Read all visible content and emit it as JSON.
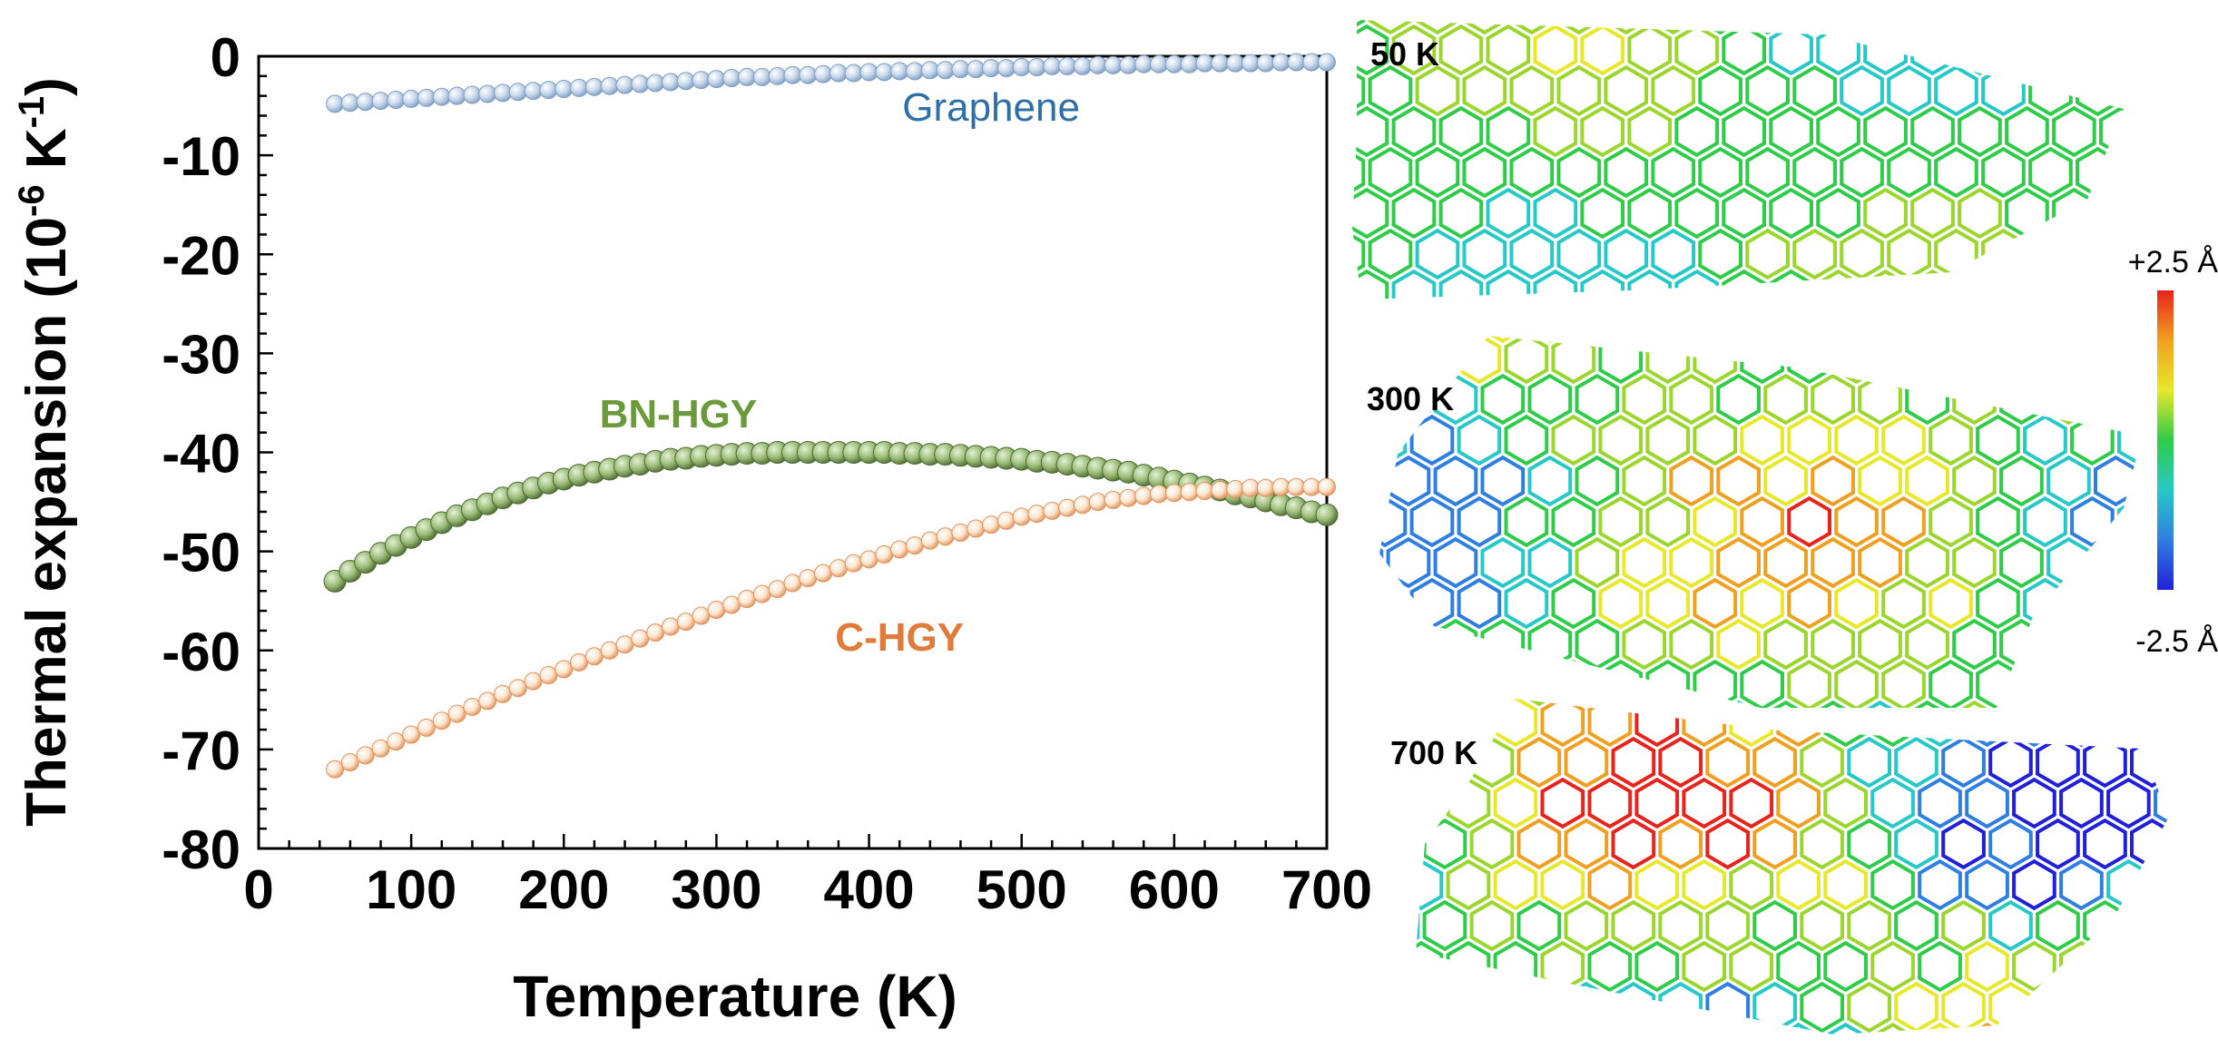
{
  "chart_data": {
    "type": "scatter",
    "title": "",
    "xlabel": "Temperature (K)",
    "ylabel_main": "Thermal expansion (10",
    "ylabel_exp1": "-6",
    "ylabel_unit": " K",
    "ylabel_exp2": "-1",
    "ylabel_close": ")",
    "xlim": [
      0,
      700
    ],
    "ylim": [
      -80,
      0
    ],
    "xticks": [
      0,
      100,
      200,
      300,
      400,
      500,
      600,
      700
    ],
    "xtick_labels": [
      "0",
      "100",
      "200",
      "300",
      "400",
      "500",
      "600",
      "700"
    ],
    "yticks": [
      0,
      -10,
      -20,
      -30,
      -40,
      -50,
      -60,
      -70,
      -80
    ],
    "ytick_labels": [
      "0",
      "-10",
      "-20",
      "-30",
      "-40",
      "-50",
      "-60",
      "-70",
      "-80"
    ],
    "grid": false,
    "x": [
      50,
      60,
      70,
      80,
      90,
      100,
      110,
      120,
      130,
      140,
      150,
      160,
      170,
      180,
      190,
      200,
      210,
      220,
      230,
      240,
      250,
      260,
      270,
      280,
      290,
      300,
      310,
      320,
      330,
      340,
      350,
      360,
      370,
      380,
      390,
      400,
      410,
      420,
      430,
      440,
      450,
      460,
      470,
      480,
      490,
      500,
      510,
      520,
      530,
      540,
      550,
      560,
      570,
      580,
      590,
      600,
      610,
      620,
      630,
      640,
      650,
      660,
      670,
      680,
      690,
      700
    ],
    "series": [
      {
        "name": "Graphene",
        "label": "Graphene",
        "label_at": [
          480,
          -6.5
        ],
        "color": "#2f6fa8",
        "marker_fill": "#c7d7ea",
        "marker_edge": "#7f9fc4",
        "marker_style": "small",
        "values": [
          -4.8,
          -4.7,
          -4.6,
          -4.5,
          -4.4,
          -4.3,
          -4.2,
          -4.1,
          -4.0,
          -3.9,
          -3.8,
          -3.7,
          -3.6,
          -3.5,
          -3.4,
          -3.3,
          -3.2,
          -3.1,
          -3.0,
          -2.9,
          -2.8,
          -2.7,
          -2.6,
          -2.5,
          -2.4,
          -2.3,
          -2.2,
          -2.1,
          -2.1,
          -2.0,
          -1.9,
          -1.9,
          -1.8,
          -1.7,
          -1.7,
          -1.6,
          -1.6,
          -1.5,
          -1.5,
          -1.4,
          -1.4,
          -1.3,
          -1.3,
          -1.2,
          -1.2,
          -1.1,
          -1.1,
          -1.0,
          -1.0,
          -1.0,
          -0.9,
          -0.9,
          -0.9,
          -0.8,
          -0.8,
          -0.8,
          -0.8,
          -0.7,
          -0.7,
          -0.7,
          -0.7,
          -0.7,
          -0.6,
          -0.6,
          -0.6,
          -0.6
        ]
      },
      {
        "name": "BN-HGY",
        "label": "BN-HGY",
        "label_at": [
          275,
          -37.5
        ],
        "color": "#6a9a3c",
        "marker_fill": "#9bbd78",
        "marker_edge": "#4e6b34",
        "marker_style": "large",
        "values": [
          -53.0,
          -52.0,
          -51.1,
          -50.2,
          -49.4,
          -48.6,
          -47.8,
          -47.1,
          -46.4,
          -45.8,
          -45.2,
          -44.6,
          -44.1,
          -43.6,
          -43.1,
          -42.7,
          -42.3,
          -42.0,
          -41.7,
          -41.4,
          -41.2,
          -40.9,
          -40.7,
          -40.6,
          -40.4,
          -40.3,
          -40.2,
          -40.1,
          -40.1,
          -40.0,
          -40.0,
          -40.0,
          -40.0,
          -40.0,
          -40.0,
          -40.0,
          -40.0,
          -40.1,
          -40.1,
          -40.2,
          -40.2,
          -40.3,
          -40.4,
          -40.5,
          -40.6,
          -40.7,
          -40.9,
          -41.0,
          -41.2,
          -41.4,
          -41.6,
          -41.8,
          -42.0,
          -42.3,
          -42.6,
          -42.9,
          -43.2,
          -43.5,
          -43.8,
          -44.2,
          -44.5,
          -44.9,
          -45.3,
          -45.6,
          -46.0,
          -46.3
        ]
      },
      {
        "name": "C-HGY",
        "label": "C-HGY",
        "label_at": [
          420,
          -60
        ],
        "color": "#e07b3a",
        "marker_fill": "#fbe6cf",
        "marker_edge": "#e3925c",
        "marker_style": "small",
        "values": [
          -72.0,
          -71.3,
          -70.6,
          -69.9,
          -69.2,
          -68.5,
          -67.8,
          -67.1,
          -66.4,
          -65.7,
          -65.1,
          -64.4,
          -63.8,
          -63.1,
          -62.5,
          -61.9,
          -61.2,
          -60.6,
          -60.0,
          -59.4,
          -58.8,
          -58.2,
          -57.6,
          -57.1,
          -56.5,
          -55.9,
          -55.4,
          -54.8,
          -54.3,
          -53.8,
          -53.2,
          -52.7,
          -52.2,
          -51.7,
          -51.2,
          -50.8,
          -50.3,
          -49.8,
          -49.4,
          -48.9,
          -48.5,
          -48.1,
          -47.7,
          -47.3,
          -46.9,
          -46.5,
          -46.2,
          -45.9,
          -45.6,
          -45.3,
          -45.0,
          -44.8,
          -44.6,
          -44.4,
          -44.2,
          -44.1,
          -44.0,
          -43.9,
          -43.8,
          -43.7,
          -43.6,
          -43.6,
          -43.5,
          -43.5,
          -43.5,
          -43.5
        ]
      }
    ],
    "panels": [
      {
        "name": "panel-50k",
        "label": "50 K",
        "temp": 50
      },
      {
        "name": "panel-300k",
        "label": "300 K",
        "temp": 300
      },
      {
        "name": "panel-700k",
        "label": "700 K",
        "temp": 700
      }
    ],
    "colorbar": {
      "max_label": "+2.5 Å",
      "min_label": "-2.5 Å",
      "max_value": 2.5,
      "min_value": -2.5,
      "colors": [
        "#e8231c",
        "#f0a020",
        "#e8e82a",
        "#2ecc48",
        "#27c8c8",
        "#2f7fe0",
        "#2020d8"
      ]
    }
  }
}
